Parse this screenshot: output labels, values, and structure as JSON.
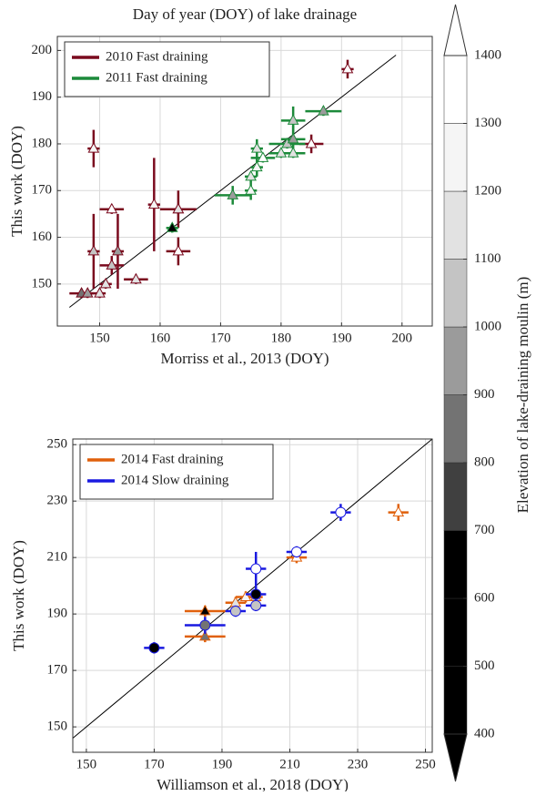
{
  "chart_data": [
    {
      "type": "scatter",
      "title": "Day of year (DOY) of lake drainage",
      "x_label": "Morriss et al., 2013 (DOY)",
      "y_label": "This work (DOY)",
      "xlim": [
        143,
        205
      ],
      "ylim": [
        141,
        203
      ],
      "xticks": [
        150,
        160,
        170,
        180,
        190,
        200
      ],
      "yticks": [
        150,
        160,
        170,
        180,
        190,
        200
      ],
      "grid": true,
      "legend": "upper left",
      "identity_line": [
        145,
        199
      ],
      "series": [
        {
          "name": "2010 Fast draining",
          "color": "#7a0a1e",
          "marker": "triangle",
          "x": [
            147,
            148,
            149,
            149,
            150,
            151,
            152,
            152,
            153,
            156,
            159,
            163,
            163,
            163,
            185,
            191
          ],
          "values": [
            148,
            148,
            179,
            157,
            148,
            150,
            166,
            154,
            157,
            151,
            167,
            166,
            166,
            157,
            180,
            196
          ],
          "xerr": [
            2,
            1,
            1,
            1,
            1,
            1,
            2,
            2,
            1,
            2,
            1,
            3,
            2,
            2,
            2,
            1
          ],
          "yerr": [
            1,
            1,
            4,
            8,
            1,
            1,
            1,
            2,
            8,
            1,
            10,
            1,
            4,
            3,
            2,
            2
          ],
          "elevation": [
            850,
            950,
            1250,
            1050,
            1150,
            1150,
            1350,
            1050,
            950,
            1150,
            1250,
            850,
            1150,
            1350,
            1350,
            1350
          ]
        },
        {
          "name": "2011 Fast draining",
          "color": "#1c8a3a",
          "marker": "triangle",
          "x": [
            162,
            172,
            175,
            175,
            176,
            176,
            177,
            180,
            181,
            182,
            182,
            182,
            187
          ],
          "values": [
            162,
            169,
            170,
            173,
            175,
            179,
            177,
            178,
            180,
            178,
            181,
            185,
            187
          ],
          "xerr": [
            1,
            3,
            1,
            1,
            1,
            1,
            2,
            2,
            3,
            2,
            2,
            2,
            3
          ],
          "yerr": [
            1,
            2,
            2,
            1,
            2,
            2,
            1,
            1,
            1,
            1,
            3,
            3,
            1
          ],
          "elevation": [
            550,
            950,
            1250,
            1150,
            1250,
            1150,
            1350,
            1150,
            1050,
            1150,
            950,
            1050,
            950
          ]
        }
      ]
    },
    {
      "type": "scatter",
      "x_label": "Williamson et al., 2018 (DOY)",
      "y_label": "This work (DOY)",
      "xlim": [
        146,
        252
      ],
      "ylim": [
        141,
        252
      ],
      "xticks": [
        150,
        170,
        190,
        210,
        230,
        250
      ],
      "yticks": [
        150,
        170,
        190,
        210,
        230,
        250
      ],
      "grid": true,
      "legend": "upper left",
      "identity_line": [
        146,
        252
      ],
      "series": [
        {
          "name": "2014 Fast draining",
          "color": "#e0600b",
          "marker": "triangle",
          "x": [
            185,
            185,
            194,
            197,
            200,
            212,
            242
          ],
          "values": [
            191,
            182,
            194,
            196,
            196,
            210,
            226
          ],
          "xerr": [
            6,
            6,
            3,
            3,
            2,
            3,
            3
          ],
          "yerr": [
            2,
            2,
            2,
            2,
            3,
            2,
            3
          ],
          "elevation": [
            550,
            850,
            1150,
            1250,
            1050,
            1350,
            1350
          ]
        },
        {
          "name": "2014 Slow draining",
          "color": "#1a1ae0",
          "marker": "circle",
          "x": [
            170,
            185,
            194,
            200,
            200,
            200,
            212,
            225
          ],
          "values": [
            178,
            186,
            191,
            206,
            197,
            193,
            212,
            226
          ],
          "xerr": [
            3,
            6,
            3,
            3,
            3,
            3,
            3,
            3
          ],
          "yerr": [
            2,
            3,
            2,
            6,
            3,
            2,
            2,
            3
          ],
          "elevation": [
            550,
            850,
            1050,
            1350,
            550,
            1050,
            1350,
            1350
          ]
        }
      ]
    }
  ],
  "colorbar": {
    "label": "Elevation of lake-draining moulin (m)",
    "ticks": [
      400,
      500,
      600,
      700,
      800,
      900,
      1000,
      1100,
      1200,
      1300,
      1400
    ],
    "colors": [
      "#000000",
      "#000000",
      "#000000",
      "#404040",
      "#737373",
      "#9b9b9b",
      "#c4c4c4",
      "#e2e2e2",
      "#f5f5f5",
      "#ffffff"
    ],
    "extend_colors": [
      "#000000",
      "#ffffff"
    ]
  }
}
